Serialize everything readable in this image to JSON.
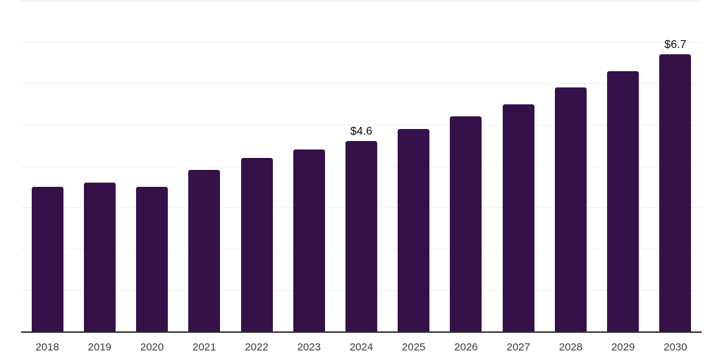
{
  "chart_data": {
    "type": "bar",
    "categories": [
      "2018",
      "2019",
      "2020",
      "2021",
      "2022",
      "2023",
      "2024",
      "2025",
      "2026",
      "2027",
      "2028",
      "2029",
      "2030"
    ],
    "values": [
      3.5,
      3.6,
      3.5,
      3.9,
      4.2,
      4.4,
      4.6,
      4.9,
      5.2,
      5.5,
      5.9,
      6.3,
      6.7
    ],
    "data_labels": [
      "",
      "",
      "",
      "",
      "",
      "",
      "$4.6",
      "",
      "",
      "",
      "",
      "",
      "$6.7"
    ],
    "title": "",
    "xlabel": "",
    "ylabel": "",
    "ylim": [
      0,
      8
    ],
    "gridline_interval": 1,
    "grid": true,
    "legend": false,
    "colors": {
      "bar": "#341148",
      "gridline": "#f0f0f0",
      "top_gridline": "#e0e0e0",
      "axis_line": "#2e2e2e",
      "tick_label": "#3a3a3a",
      "data_label": "#0a0a0a",
      "background": "#ffffff"
    }
  }
}
